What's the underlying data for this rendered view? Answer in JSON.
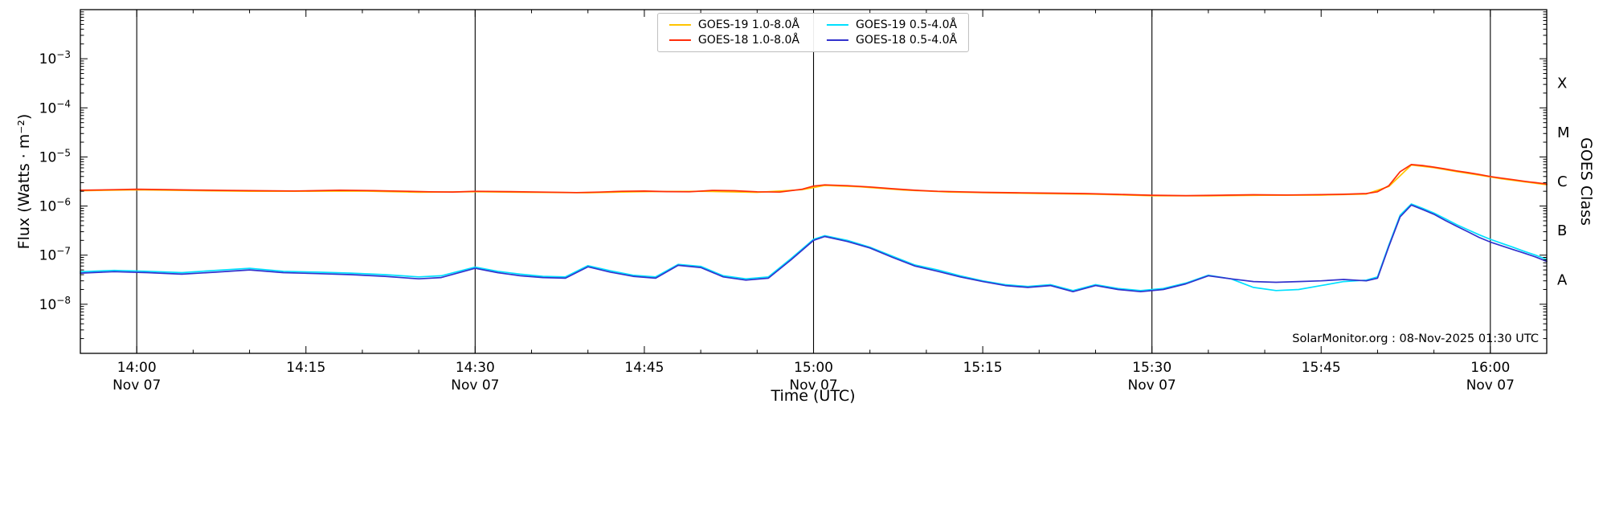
{
  "chart_data": {
    "type": "line",
    "title": "",
    "xlabel": "Time (UTC)",
    "ylabel": "Flux (Watts · m⁻²)",
    "right_axis_label": "GOES Class",
    "watermark": "SolarMonitor.org : 08-Nov-2025 01:30 UTC",
    "grid": "vertical-lines-at-half-hours",
    "legend_position": "top-center",
    "x_axis": {
      "unit": "minutes-since-00:00-UTC-07-Nov-2025",
      "range": [
        835,
        965
      ],
      "minor_tick_step_minutes": 5,
      "ticks": [
        {
          "t": 840,
          "label": "14:00",
          "date": "Nov 07",
          "vline": true
        },
        {
          "t": 855,
          "label": "14:15",
          "date": "",
          "vline": false
        },
        {
          "t": 870,
          "label": "14:30",
          "date": "Nov 07",
          "vline": true
        },
        {
          "t": 885,
          "label": "14:45",
          "date": "",
          "vline": false
        },
        {
          "t": 900,
          "label": "15:00",
          "date": "Nov 07",
          "vline": true
        },
        {
          "t": 915,
          "label": "15:15",
          "date": "",
          "vline": false
        },
        {
          "t": 930,
          "label": "15:30",
          "date": "Nov 07",
          "vline": true
        },
        {
          "t": 945,
          "label": "15:45",
          "date": "",
          "vline": false
        },
        {
          "t": 960,
          "label": "16:00",
          "date": "Nov 07",
          "vline": true
        }
      ]
    },
    "y_axis": {
      "scale": "log10",
      "range_exponents": [
        -9,
        -2
      ],
      "ticks": [
        {
          "exp": -8,
          "label": "10⁻⁸"
        },
        {
          "exp": -7,
          "label": "10⁻⁷"
        },
        {
          "exp": -6,
          "label": "10⁻⁶"
        },
        {
          "exp": -5,
          "label": "10⁻⁵"
        },
        {
          "exp": -4,
          "label": "10⁻⁴"
        },
        {
          "exp": -3,
          "label": "10⁻³"
        }
      ]
    },
    "goes_classes": [
      {
        "label": "A",
        "decade_exponent": -8
      },
      {
        "label": "B",
        "decade_exponent": -7
      },
      {
        "label": "C",
        "decade_exponent": -6
      },
      {
        "label": "M",
        "decade_exponent": -5
      },
      {
        "label": "X",
        "decade_exponent": -4
      }
    ],
    "series": [
      {
        "id": "goes19-long",
        "name": "GOES-19 1.0-8.0Å",
        "color": "#ffc400",
        "points": [
          [
            835,
            2.05e-06
          ],
          [
            840,
            2.14e-06
          ],
          [
            845,
            2.07e-06
          ],
          [
            850,
            2e-06
          ],
          [
            855,
            2e-06
          ],
          [
            860,
            2.02e-06
          ],
          [
            865,
            1.91e-06
          ],
          [
            870,
            1.95e-06
          ],
          [
            875,
            1.9e-06
          ],
          [
            880,
            1.87e-06
          ],
          [
            885,
            1.97e-06
          ],
          [
            890,
            2e-06
          ],
          [
            895,
            1.9e-06
          ],
          [
            899,
            2.15e-06
          ],
          [
            901,
            2.63e-06
          ],
          [
            904,
            2.48e-06
          ],
          [
            908,
            2.12e-06
          ],
          [
            912,
            1.92e-06
          ],
          [
            916,
            1.85e-06
          ],
          [
            920,
            1.8e-06
          ],
          [
            925,
            1.74e-06
          ],
          [
            930,
            1.62e-06
          ],
          [
            935,
            1.61e-06
          ],
          [
            940,
            1.66e-06
          ],
          [
            945,
            1.67e-06
          ],
          [
            949,
            1.76e-06
          ],
          [
            951,
            2.5e-06
          ],
          [
            953,
            6.85e-06
          ],
          [
            955,
            6.05e-06
          ],
          [
            957,
            5.05e-06
          ],
          [
            959,
            4.28e-06
          ],
          [
            961,
            3.6e-06
          ],
          [
            963,
            3.12e-06
          ],
          [
            965,
            2.72e-06
          ]
        ]
      },
      {
        "id": "goes18-long",
        "name": "GOES-18 1.0-8.0Å",
        "color": "#ff2d0a",
        "points": [
          [
            835,
            2.1e-06
          ],
          [
            838,
            2.15e-06
          ],
          [
            840,
            2.2e-06
          ],
          [
            842,
            2.17e-06
          ],
          [
            845,
            2.12e-06
          ],
          [
            848,
            2.08e-06
          ],
          [
            851,
            2.05e-06
          ],
          [
            854,
            2.03e-06
          ],
          [
            856,
            2.06e-06
          ],
          [
            858,
            2.1e-06
          ],
          [
            861,
            2.06e-06
          ],
          [
            864,
            2e-06
          ],
          [
            866,
            1.95e-06
          ],
          [
            868,
            1.93e-06
          ],
          [
            870,
            2e-06
          ],
          [
            873,
            1.97e-06
          ],
          [
            876,
            1.92e-06
          ],
          [
            879,
            1.88e-06
          ],
          [
            881,
            1.92e-06
          ],
          [
            883,
            2e-06
          ],
          [
            885,
            2.02e-06
          ],
          [
            887,
            1.97e-06
          ],
          [
            889,
            1.95e-06
          ],
          [
            891,
            2.08e-06
          ],
          [
            893,
            2.05e-06
          ],
          [
            895,
            1.95e-06
          ],
          [
            897,
            1.92e-06
          ],
          [
            899,
            2.2e-06
          ],
          [
            900,
            2.55e-06
          ],
          [
            901,
            2.7e-06
          ],
          [
            903,
            2.6e-06
          ],
          [
            905,
            2.45e-06
          ],
          [
            907,
            2.25e-06
          ],
          [
            909,
            2.1e-06
          ],
          [
            911,
            2e-06
          ],
          [
            913,
            1.95e-06
          ],
          [
            915,
            1.9e-06
          ],
          [
            918,
            1.87e-06
          ],
          [
            921,
            1.83e-06
          ],
          [
            924,
            1.8e-06
          ],
          [
            927,
            1.73e-06
          ],
          [
            930,
            1.66e-06
          ],
          [
            933,
            1.63e-06
          ],
          [
            936,
            1.66e-06
          ],
          [
            939,
            1.7e-06
          ],
          [
            942,
            1.68e-06
          ],
          [
            945,
            1.71e-06
          ],
          [
            947,
            1.74e-06
          ],
          [
            949,
            1.8e-06
          ],
          [
            950,
            1.95e-06
          ],
          [
            951,
            2.6e-06
          ],
          [
            952,
            5e-06
          ],
          [
            953,
            7e-06
          ],
          [
            954,
            6.7e-06
          ],
          [
            955,
            6.2e-06
          ],
          [
            956,
            5.7e-06
          ],
          [
            957,
            5.2e-06
          ],
          [
            958,
            4.8e-06
          ],
          [
            959,
            4.4e-06
          ],
          [
            960,
            4e-06
          ],
          [
            961,
            3.7e-06
          ],
          [
            962,
            3.45e-06
          ],
          [
            963,
            3.2e-06
          ],
          [
            964,
            3e-06
          ],
          [
            965,
            2.8e-06
          ]
        ]
      },
      {
        "id": "goes19-short",
        "name": "GOES-19 0.5-4.0Å",
        "color": "#00e0ff",
        "points": [
          [
            835,
            4.6e-08
          ],
          [
            838,
            4.9e-08
          ],
          [
            841,
            4.7e-08
          ],
          [
            844,
            4.4e-08
          ],
          [
            847,
            4.9e-08
          ],
          [
            850,
            5.4e-08
          ],
          [
            853,
            4.7e-08
          ],
          [
            856,
            4.5e-08
          ],
          [
            859,
            4.3e-08
          ],
          [
            862,
            4e-08
          ],
          [
            865,
            3.6e-08
          ],
          [
            867,
            3.8e-08
          ],
          [
            870,
            5.7e-08
          ],
          [
            872,
            4.7e-08
          ],
          [
            874,
            4.1e-08
          ],
          [
            876,
            3.7e-08
          ],
          [
            878,
            3.6e-08
          ],
          [
            880,
            6.1e-08
          ],
          [
            882,
            4.8e-08
          ],
          [
            884,
            3.9e-08
          ],
          [
            886,
            3.6e-08
          ],
          [
            888,
            6.5e-08
          ],
          [
            890,
            5.9e-08
          ],
          [
            892,
            3.8e-08
          ],
          [
            894,
            3.3e-08
          ],
          [
            896,
            3.6e-08
          ],
          [
            898,
            8.5e-08
          ],
          [
            900,
            2.1e-07
          ],
          [
            901,
            2.5e-07
          ],
          [
            903,
            2e-07
          ],
          [
            905,
            1.45e-07
          ],
          [
            907,
            9.5e-08
          ],
          [
            909,
            6.3e-08
          ],
          [
            911,
            5e-08
          ],
          [
            913,
            3.8e-08
          ],
          [
            915,
            3e-08
          ],
          [
            917,
            2.5e-08
          ],
          [
            919,
            2.3e-08
          ],
          [
            921,
            2.5e-08
          ],
          [
            923,
            1.9e-08
          ],
          [
            925,
            2.5e-08
          ],
          [
            927,
            2.1e-08
          ],
          [
            929,
            1.9e-08
          ],
          [
            931,
            2.1e-08
          ],
          [
            933,
            2.7e-08
          ],
          [
            935,
            3.9e-08
          ],
          [
            937,
            3.3e-08
          ],
          [
            939,
            2.2e-08
          ],
          [
            941,
            1.9e-08
          ],
          [
            943,
            2e-08
          ],
          [
            945,
            2.4e-08
          ],
          [
            947,
            2.9e-08
          ],
          [
            949,
            3.1e-08
          ],
          [
            950,
            3.6e-08
          ],
          [
            951,
            1.6e-07
          ],
          [
            952,
            6.5e-07
          ],
          [
            953,
            1.1e-06
          ],
          [
            954,
            9e-07
          ],
          [
            955,
            7.2e-07
          ],
          [
            956,
            5.5e-07
          ],
          [
            957,
            4.2e-07
          ],
          [
            958,
            3.3e-07
          ],
          [
            959,
            2.6e-07
          ],
          [
            960,
            2.1e-07
          ],
          [
            961,
            1.75e-07
          ],
          [
            962,
            1.45e-07
          ],
          [
            963,
            1.2e-07
          ],
          [
            964,
            1e-07
          ],
          [
            965,
            8.2e-08
          ]
        ]
      },
      {
        "id": "goes18-short",
        "name": "GOES-18 0.5-4.0Å",
        "color": "#3232cd",
        "points": [
          [
            835,
            4.3e-08
          ],
          [
            838,
            4.6e-08
          ],
          [
            841,
            4.4e-08
          ],
          [
            844,
            4.1e-08
          ],
          [
            847,
            4.5e-08
          ],
          [
            850,
            5e-08
          ],
          [
            853,
            4.4e-08
          ],
          [
            856,
            4.2e-08
          ],
          [
            859,
            4e-08
          ],
          [
            862,
            3.7e-08
          ],
          [
            865,
            3.3e-08
          ],
          [
            867,
            3.5e-08
          ],
          [
            870,
            5.4e-08
          ],
          [
            872,
            4.4e-08
          ],
          [
            874,
            3.8e-08
          ],
          [
            876,
            3.5e-08
          ],
          [
            878,
            3.4e-08
          ],
          [
            880,
            5.8e-08
          ],
          [
            882,
            4.5e-08
          ],
          [
            884,
            3.7e-08
          ],
          [
            886,
            3.4e-08
          ],
          [
            888,
            6.2e-08
          ],
          [
            890,
            5.6e-08
          ],
          [
            892,
            3.6e-08
          ],
          [
            894,
            3.1e-08
          ],
          [
            896,
            3.4e-08
          ],
          [
            898,
            8e-08
          ],
          [
            900,
            2e-07
          ],
          [
            901,
            2.4e-07
          ],
          [
            903,
            1.9e-07
          ],
          [
            905,
            1.4e-07
          ],
          [
            907,
            9e-08
          ],
          [
            909,
            6e-08
          ],
          [
            911,
            4.7e-08
          ],
          [
            913,
            3.6e-08
          ],
          [
            915,
            2.9e-08
          ],
          [
            917,
            2.4e-08
          ],
          [
            919,
            2.2e-08
          ],
          [
            921,
            2.4e-08
          ],
          [
            923,
            1.8e-08
          ],
          [
            925,
            2.4e-08
          ],
          [
            927,
            2e-08
          ],
          [
            929,
            1.8e-08
          ],
          [
            931,
            2e-08
          ],
          [
            933,
            2.6e-08
          ],
          [
            935,
            3.8e-08
          ],
          [
            937,
            3.3e-08
          ],
          [
            939,
            2.9e-08
          ],
          [
            941,
            2.8e-08
          ],
          [
            943,
            2.9e-08
          ],
          [
            945,
            3e-08
          ],
          [
            947,
            3.2e-08
          ],
          [
            949,
            3e-08
          ],
          [
            950,
            3.4e-08
          ],
          [
            951,
            1.5e-07
          ],
          [
            952,
            6e-07
          ],
          [
            953,
            1.05e-06
          ],
          [
            954,
            8.5e-07
          ],
          [
            955,
            6.8e-07
          ],
          [
            956,
            5.1e-07
          ],
          [
            957,
            3.9e-07
          ],
          [
            958,
            3e-07
          ],
          [
            959,
            2.3e-07
          ],
          [
            960,
            1.85e-07
          ],
          [
            961,
            1.55e-07
          ],
          [
            962,
            1.3e-07
          ],
          [
            963,
            1.1e-07
          ],
          [
            964,
            9.2e-08
          ],
          [
            965,
            7.5e-08
          ]
        ]
      }
    ]
  }
}
